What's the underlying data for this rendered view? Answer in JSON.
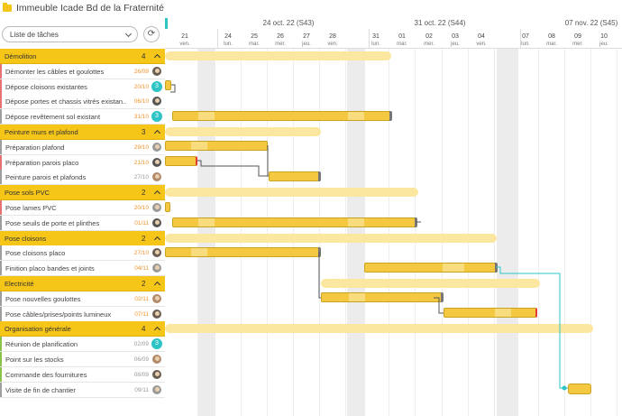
{
  "header": {
    "title": "Immeuble Icade Bd de la Fraternité"
  },
  "toolbar": {
    "view_select": "Liste de tâches",
    "refresh_icon": "⟳"
  },
  "timeline": {
    "weeks": [
      {
        "label": "24 oct. 22 (S43)"
      },
      {
        "label": "31 oct. 22 (S44)"
      },
      {
        "label": "07 nov. 22 (S45)"
      }
    ],
    "days": [
      {
        "num": "21",
        "name": "ven."
      },
      {
        "num": "24",
        "name": "lun."
      },
      {
        "num": "25",
        "name": "mar."
      },
      {
        "num": "26",
        "name": "mer."
      },
      {
        "num": "27",
        "name": "jeu."
      },
      {
        "num": "28",
        "name": "ven."
      },
      {
        "num": "31",
        "name": "lun."
      },
      {
        "num": "01",
        "name": "mar."
      },
      {
        "num": "02",
        "name": "mer."
      },
      {
        "num": "03",
        "name": "jeu."
      },
      {
        "num": "04",
        "name": "ven."
      },
      {
        "num": "07",
        "name": "lun."
      },
      {
        "num": "08",
        "name": "mar."
      },
      {
        "num": "09",
        "name": "mer."
      },
      {
        "num": "10",
        "name": "jeu."
      }
    ]
  },
  "rows": [
    {
      "kind": "group",
      "label": "Démolition",
      "count": "4"
    },
    {
      "kind": "task",
      "label": "Démonter les câbles et goulottes",
      "date": "26/09",
      "late": true,
      "accent": "#e57373",
      "who": "avatar"
    },
    {
      "kind": "task",
      "label": "Dépose cloisons existantes",
      "date": "20/10",
      "late": true,
      "accent": "#e57373",
      "who": "3"
    },
    {
      "kind": "task",
      "label": "Dépose portes et chassis vitrés existan...",
      "date": "06/10",
      "late": true,
      "accent": "#e57373",
      "who": "avatar"
    },
    {
      "kind": "task",
      "label": "Dépose revêtement sol existant",
      "date": "31/10",
      "late": true,
      "accent": "#9e9e9e",
      "who": "3"
    },
    {
      "kind": "group",
      "label": "Peinture murs et plafond",
      "count": "3"
    },
    {
      "kind": "task",
      "label": "Préparation plafond",
      "date": "29/10",
      "late": true,
      "accent": "#9e9e9e",
      "who": "avatar"
    },
    {
      "kind": "task",
      "label": "Préparation parois placo",
      "date": "21/10",
      "late": true,
      "accent": "#e57373",
      "who": "avatar"
    },
    {
      "kind": "task",
      "label": "Peinture parois et plafonds",
      "date": "27/10",
      "late": false,
      "accent": "#9e9e9e",
      "who": "avatar"
    },
    {
      "kind": "group",
      "label": "Pose sols PVC",
      "count": "2"
    },
    {
      "kind": "task",
      "label": "Pose lames PVC",
      "date": "20/10",
      "late": true,
      "accent": "#e57373",
      "who": "avatar"
    },
    {
      "kind": "task",
      "label": "Pose seuils de porte et plinthes",
      "date": "01/11",
      "late": true,
      "accent": "#9e9e9e",
      "who": "avatar"
    },
    {
      "kind": "group",
      "label": "Pose cloisons",
      "count": "2"
    },
    {
      "kind": "task",
      "label": "Pose cloisons placo",
      "date": "27/10",
      "late": true,
      "accent": "#9e9e9e",
      "who": "avatar"
    },
    {
      "kind": "task",
      "label": "Finition placo bandes et joints",
      "date": "04/11",
      "late": true,
      "accent": "#9e9e9e",
      "who": "avatar"
    },
    {
      "kind": "group",
      "label": "Electricité",
      "count": "2"
    },
    {
      "kind": "task",
      "label": "Pose nouvelles goulottes",
      "date": "02/11",
      "late": true,
      "accent": "#9e9e9e",
      "who": "avatar"
    },
    {
      "kind": "task",
      "label": "Pose câbles/prises/points lumineux",
      "date": "07/11",
      "late": true,
      "accent": "#9e9e9e",
      "who": "avatar"
    },
    {
      "kind": "group",
      "label": "Organisation générale",
      "count": "4"
    },
    {
      "kind": "task",
      "label": "Réunion de planification",
      "date": "02/09",
      "late": false,
      "accent": "#8bc34a",
      "who": "3"
    },
    {
      "kind": "task",
      "label": "Point sur les stocks",
      "date": "06/09",
      "late": false,
      "accent": "#8bc34a",
      "who": "avatar"
    },
    {
      "kind": "task",
      "label": "Commande des fournitures",
      "date": "08/09",
      "late": false,
      "accent": "#8bc34a",
      "who": "avatar"
    },
    {
      "kind": "task",
      "label": "Visite de fin de chantier",
      "date": "09/11",
      "late": false,
      "accent": "#9e9e9e",
      "who": "avatar"
    }
  ],
  "colors": {
    "accent_yellow": "#f5c518",
    "teal": "#2ec4c6",
    "late_orange": "#f0932b",
    "group_bar": "#fbe7a0"
  }
}
